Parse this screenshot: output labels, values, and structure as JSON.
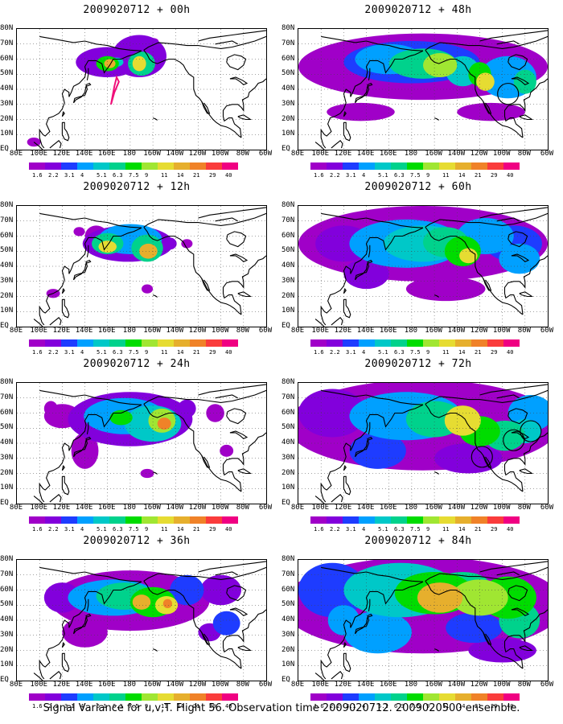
{
  "caption": "Signal Variance for u,v,T. Flight 56. Observation time 2009020712. 2009020500 ensemble.",
  "lat_labels": [
    "80N",
    "70N",
    "60N",
    "50N",
    "40N",
    "30N",
    "20N",
    "10N",
    "EQ"
  ],
  "lon_labels": [
    "80E",
    "100E",
    "120E",
    "140E",
    "160E",
    "180",
    "160W",
    "140W",
    "120W",
    "100W",
    "80W",
    "60W"
  ],
  "colorbar": {
    "labels": [
      "1.6",
      "2.2",
      "3.1",
      "4",
      "5.1",
      "6.3",
      "7.5",
      "9",
      "11",
      "14",
      "21",
      "29",
      "40"
    ],
    "colors": [
      "#a000c8",
      "#8200dc",
      "#1e3cff",
      "#00a0ff",
      "#00c8c8",
      "#00d28c",
      "#00dc00",
      "#a0e632",
      "#e6dc32",
      "#e6af2d",
      "#f08228",
      "#fa3c3c",
      "#f00082"
    ]
  },
  "panels": [
    {
      "title": "2009020712 + 00h",
      "col": 0,
      "row": 0,
      "spread": 0,
      "flight_track": true,
      "circles": []
    },
    {
      "title": "2009020712 + 12h",
      "col": 0,
      "row": 1,
      "spread": 1,
      "flight_track": false,
      "circles": []
    },
    {
      "title": "2009020712 + 24h",
      "col": 0,
      "row": 2,
      "spread": 2,
      "flight_track": false,
      "circles": []
    },
    {
      "title": "2009020712 + 36h",
      "col": 0,
      "row": 3,
      "spread": 3,
      "flight_track": false,
      "circles": []
    },
    {
      "title": "2009020712 + 48h",
      "col": 1,
      "row": 0,
      "spread": 4,
      "flight_track": false,
      "circles": [
        {
          "lon": -95,
          "lat": 37
        }
      ]
    },
    {
      "title": "2009020712 + 60h",
      "col": 1,
      "row": 1,
      "spread": 5,
      "flight_track": false,
      "circles": []
    },
    {
      "title": "2009020712 + 72h",
      "col": 1,
      "row": 2,
      "spread": 6,
      "flight_track": false,
      "circles": [
        {
          "lon": -118,
          "lat": 31
        },
        {
          "lon": -90,
          "lat": 42
        },
        {
          "lon": -75,
          "lat": 48
        }
      ]
    },
    {
      "title": "2009020712 + 84h",
      "col": 1,
      "row": 3,
      "spread": 7,
      "flight_track": false,
      "circles": []
    }
  ]
}
